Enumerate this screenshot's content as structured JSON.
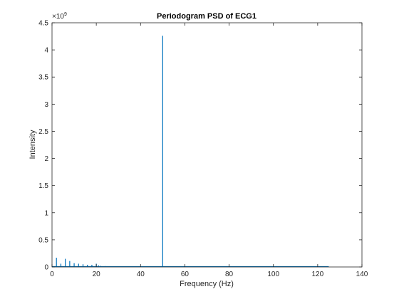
{
  "chart_data": {
    "type": "line",
    "title": "Periodogram PSD of ECG1",
    "xlabel": "Frequency (Hz)",
    "ylabel": "Intensity",
    "y_exponent_label": "×10",
    "y_exponent_power": "9",
    "xlim": [
      0,
      140
    ],
    "ylim": [
      0,
      4.5
    ],
    "y_scale_factor": 1000000000,
    "x_ticks": [
      "0",
      "20",
      "40",
      "60",
      "80",
      "100",
      "120",
      "140"
    ],
    "y_ticks": [
      "0",
      "0.5",
      "1",
      "1.5",
      "2",
      "2.5",
      "3",
      "3.5",
      "4",
      "4.5"
    ],
    "grid": false,
    "series_color": "#0072bd",
    "spikes": [
      {
        "x": 2.0,
        "y": 0.17
      },
      {
        "x": 4.0,
        "y": 0.06
      },
      {
        "x": 6.0,
        "y": 0.15
      },
      {
        "x": 8.0,
        "y": 0.11
      },
      {
        "x": 10.0,
        "y": 0.07
      },
      {
        "x": 12.0,
        "y": 0.06
      },
      {
        "x": 14.0,
        "y": 0.05
      },
      {
        "x": 16.0,
        "y": 0.04
      },
      {
        "x": 18.0,
        "y": 0.04
      },
      {
        "x": 20.0,
        "y": 0.06
      },
      {
        "x": 21.0,
        "y": 0.03
      },
      {
        "x": 22.0,
        "y": 0.02
      },
      {
        "x": 24.0,
        "y": 0.015
      },
      {
        "x": 26.0,
        "y": 0.01
      },
      {
        "x": 50.0,
        "y": 4.26
      }
    ],
    "x_end": 125
  }
}
